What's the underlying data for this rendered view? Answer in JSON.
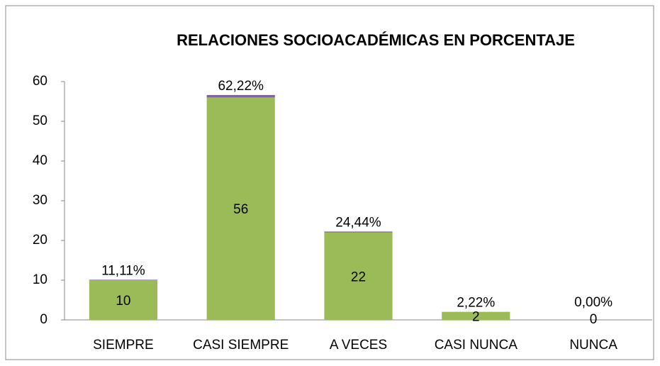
{
  "chart_data": {
    "type": "stacked_bar",
    "title": "RELACIONES SOCIOACADÉMICAS EN PORCENTAJE",
    "categories": [
      "SIEMPRE",
      "CASI SIEMPRE",
      "A VECES",
      "CASI NUNCA",
      "NUNCA"
    ],
    "series": [
      {
        "color": "#9bbb59",
        "values": [
          10,
          56,
          22,
          2,
          0
        ]
      },
      {
        "color": "#8064a2",
        "values": [
          0.1111,
          0.6222,
          0.2444,
          0.0222,
          0
        ],
        "value_labels": [
          "11,11%",
          "62,22%",
          "24,44%",
          "2,22%",
          "0,00%"
        ]
      }
    ],
    "ylim": [
      0,
      60
    ],
    "yticks": [
      0,
      10,
      20,
      30,
      40,
      50,
      60
    ],
    "grid": false
  }
}
